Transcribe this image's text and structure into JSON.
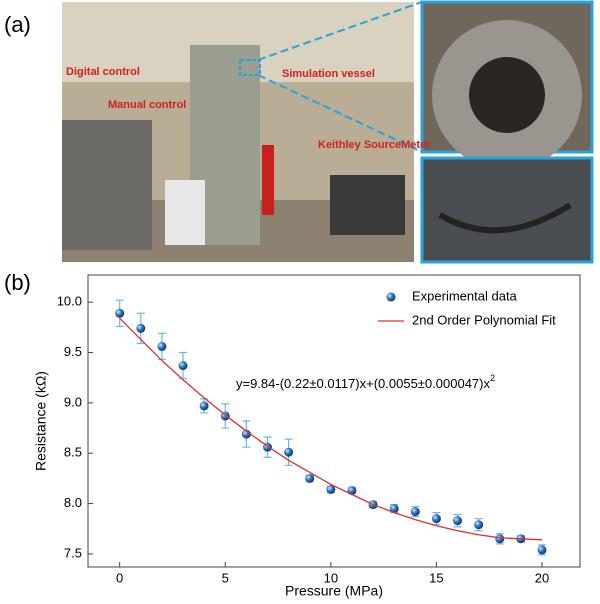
{
  "photo": {
    "panel_label": "(a)",
    "labels": [
      "Digital control",
      "Manual control",
      "Simulation vessel",
      "Keithley SourceMeter"
    ]
  },
  "chart_data": {
    "type": "scatter",
    "panel_label": "(b)",
    "x_label": "Pressure (MPa)",
    "y_label": "Resistance (kΩ)",
    "equation": "y=9.84-(0.22±0.0117)x+(0.0055±0.000047)x",
    "equation_exponent": "2",
    "x": [
      0,
      1,
      2,
      3,
      4,
      5,
      6,
      7,
      8,
      9,
      10,
      11,
      12,
      13,
      14,
      15,
      16,
      17,
      18,
      19,
      20
    ],
    "series": [
      {
        "name": "Experimental data",
        "color": "#1f5f9e",
        "error_color": "#6ab8e8",
        "values": [
          9.89,
          9.74,
          9.56,
          9.37,
          8.97,
          8.87,
          8.69,
          8.56,
          8.51,
          8.25,
          8.14,
          8.13,
          7.99,
          7.95,
          7.92,
          7.85,
          7.83,
          7.79,
          7.65,
          7.65,
          7.54
        ],
        "errors": [
          0.13,
          0.15,
          0.13,
          0.13,
          0.07,
          0.12,
          0.13,
          0.1,
          0.13,
          0.03,
          0.03,
          0.03,
          0.03,
          0.04,
          0.05,
          0.06,
          0.06,
          0.06,
          0.05,
          0.03,
          0.05
        ]
      },
      {
        "name": "2nd Order Polynomial Fit",
        "color": "#e03030",
        "line": true,
        "values": [
          9.84,
          9.63,
          9.42,
          9.23,
          9.05,
          8.88,
          8.72,
          8.57,
          8.43,
          8.31,
          8.19,
          8.09,
          7.99,
          7.91,
          7.84,
          7.78,
          7.73,
          7.69,
          7.66,
          7.65,
          7.64
        ]
      }
    ],
    "xlim": [
      -1.5,
      21.8
    ],
    "ylim": [
      7.37,
      10.27
    ],
    "xticks": [
      0,
      5,
      10,
      15,
      20
    ],
    "yticks": [
      {
        "value": 7.5,
        "label": "7.5"
      },
      {
        "value": 8,
        "label": "8.0"
      },
      {
        "value": 8.5,
        "label": "8.5"
      },
      {
        "value": 9,
        "label": "9.0"
      },
      {
        "value": 9.5,
        "label": "9.5"
      },
      {
        "value": 10,
        "label": "10.0"
      }
    ],
    "legend": "upper right"
  }
}
